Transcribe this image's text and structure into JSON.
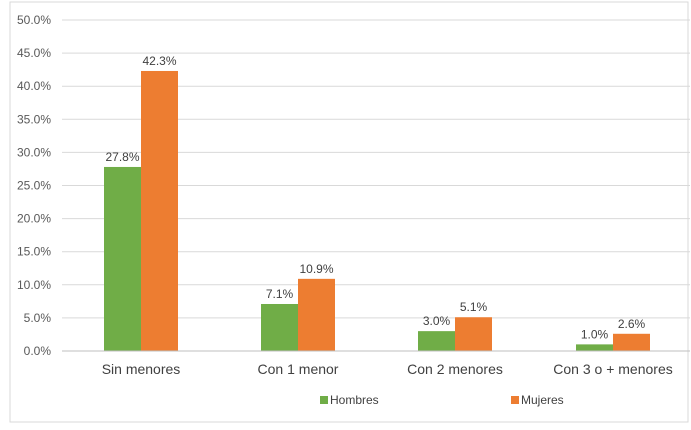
{
  "chart_data": {
    "type": "bar",
    "categories": [
      "Sin menores",
      "Con 1 menor",
      "Con 2 menores",
      "Con 3 o + menores"
    ],
    "series": [
      {
        "name": "Hombres",
        "color": "#70AD47",
        "values": [
          27.8,
          7.1,
          3.0,
          1.0
        ],
        "labels": [
          "27.8%",
          "7.1%",
          "3.0%",
          "1.0%"
        ]
      },
      {
        "name": "Mujeres",
        "color": "#ED7D31",
        "values": [
          42.3,
          10.9,
          5.1,
          2.6
        ],
        "labels": [
          "42.3%",
          "10.9%",
          "5.1%",
          "2.6%"
        ]
      }
    ],
    "yticks": [
      {
        "value": 0,
        "label": "0.0%"
      },
      {
        "value": 5,
        "label": "5.0%"
      },
      {
        "value": 10,
        "label": "10.0%"
      },
      {
        "value": 15,
        "label": "15.0%"
      },
      {
        "value": 20,
        "label": "20.0%"
      },
      {
        "value": 25,
        "label": "25.0%"
      },
      {
        "value": 30,
        "label": "30.0%"
      },
      {
        "value": 35,
        "label": "35.0%"
      },
      {
        "value": 40,
        "label": "40.0%"
      },
      {
        "value": 45,
        "label": "45.0%"
      },
      {
        "value": 50,
        "label": "50.0%"
      }
    ],
    "ylim": [
      0,
      50
    ],
    "grid": true,
    "legend_position": "bottom",
    "title": "",
    "xlabel": "",
    "ylabel": ""
  }
}
